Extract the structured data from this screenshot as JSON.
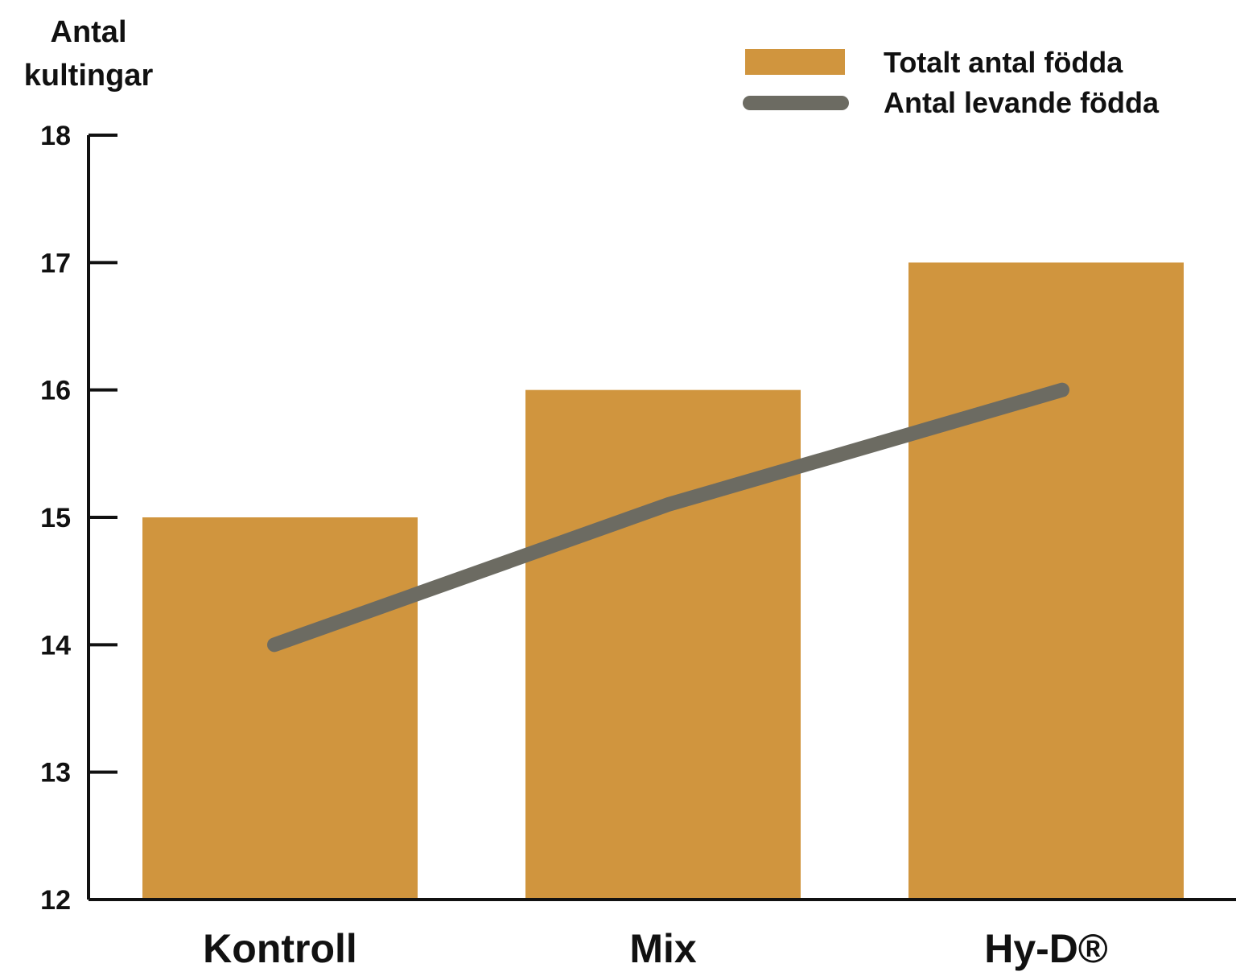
{
  "chart_data": {
    "type": "bar",
    "title": "",
    "ylabel_lines": [
      "Antal",
      "kultingar"
    ],
    "xlabel": "",
    "ylim": [
      12,
      18
    ],
    "yticks": [
      12,
      13,
      14,
      15,
      16,
      17,
      18
    ],
    "categories": [
      "Kontroll",
      "Mix",
      "Hy-D®"
    ],
    "series": [
      {
        "name": "Totalt antal födda",
        "kind": "bar",
        "color": "#D0953E",
        "values": [
          15,
          16,
          17
        ]
      },
      {
        "name": "Antal levande födda",
        "kind": "line",
        "color": "#6C6B62",
        "values": [
          14,
          15.1,
          16
        ]
      }
    ],
    "grid": false,
    "legend_position": "top-right"
  }
}
